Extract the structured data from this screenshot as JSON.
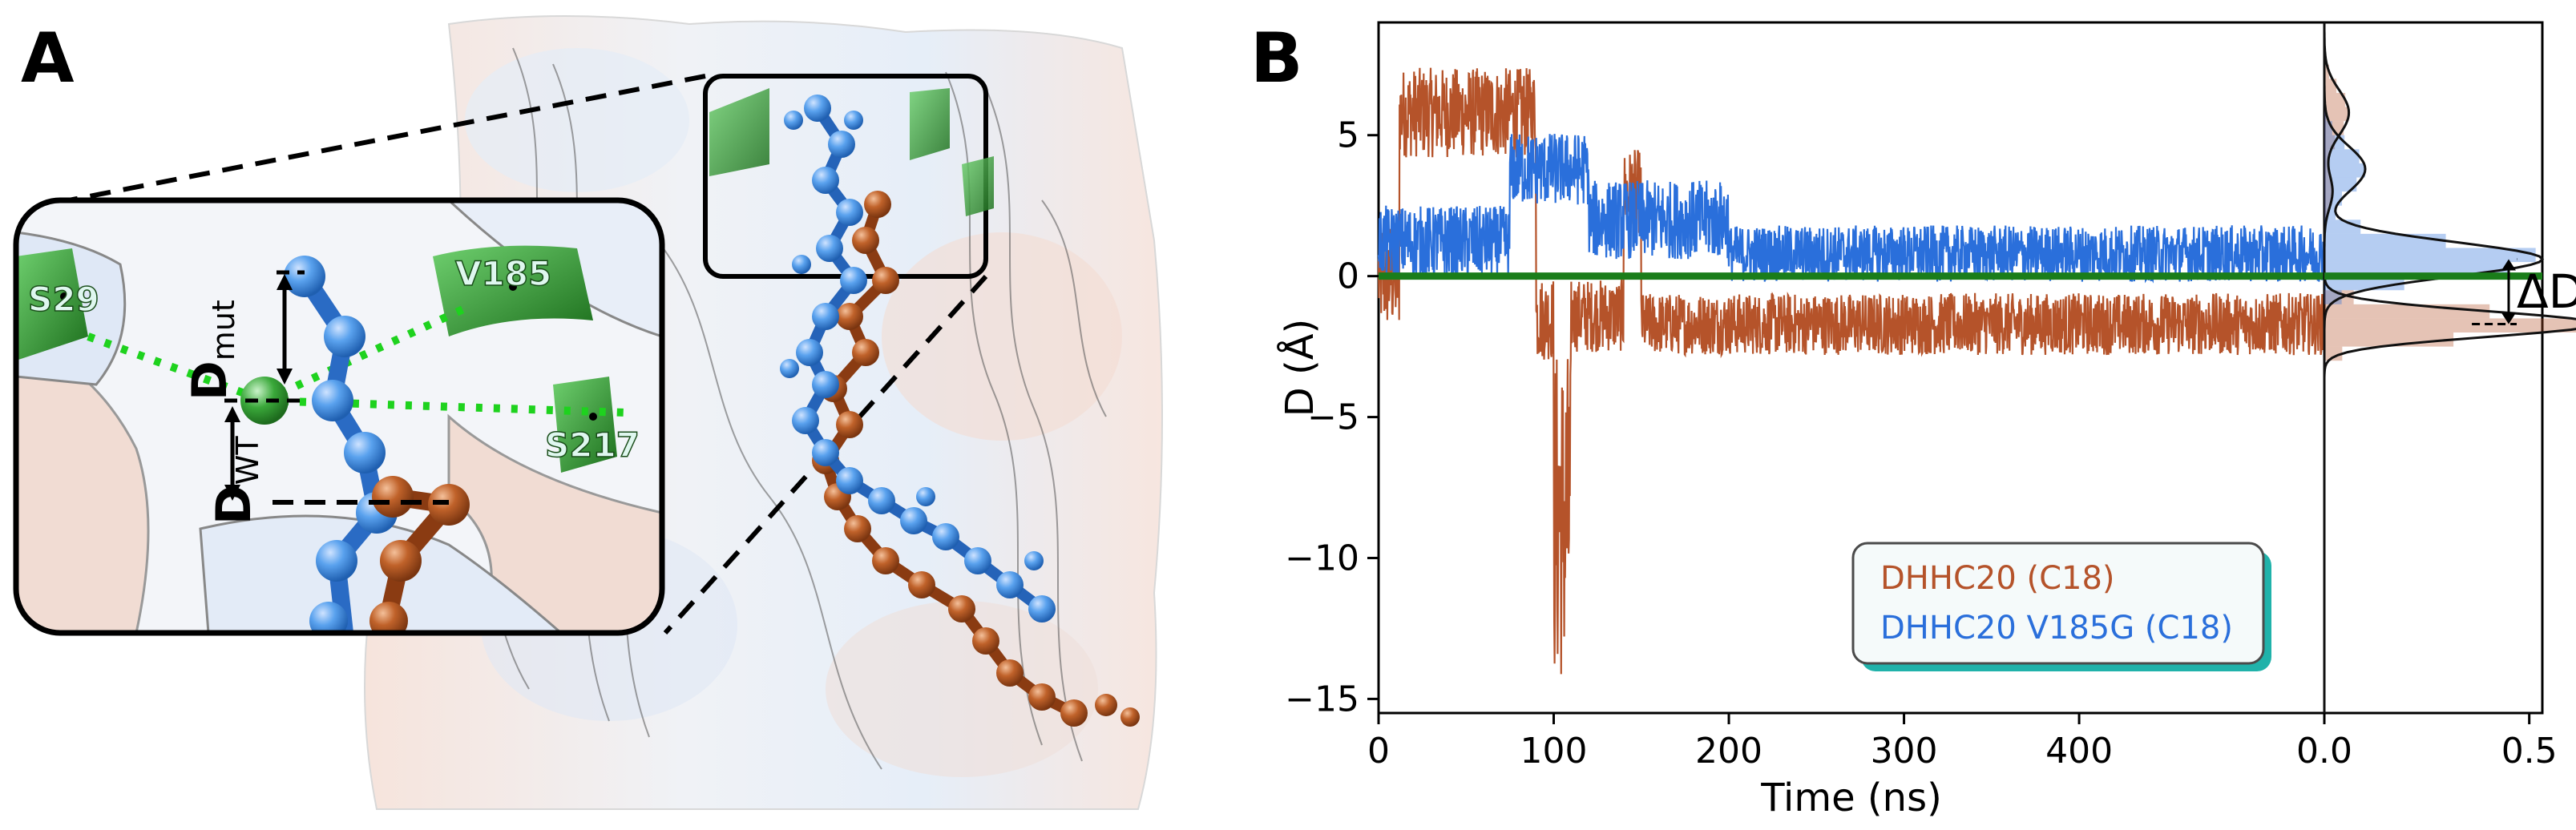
{
  "panel_a": {
    "letter": "A",
    "residues": [
      "S29",
      "V185",
      "S217"
    ],
    "d_mut": {
      "main": "D",
      "sub": "mut"
    },
    "d_wt": {
      "main": "D",
      "sub": "WT"
    }
  },
  "panel_b": {
    "letter": "B",
    "delta_label": "ΔD"
  },
  "colors": {
    "wt": "#b5532a",
    "mut": "#2a6fdb",
    "reference_line": "#1a7d1a",
    "residue_green": "#2e8b2e",
    "legend_border": "#20b2aa"
  },
  "chart_data": [
    {
      "type": "line",
      "xlabel": "Time (ns)",
      "ylabel": "D (Å)",
      "xlim": [
        0,
        540
      ],
      "ylim": [
        -15.5,
        9
      ],
      "xticks": [
        0,
        100,
        200,
        300,
        400
      ],
      "xtick_labels": [
        "0",
        "100",
        "200",
        "300",
        "400"
      ],
      "yticks": [
        5,
        0,
        -5,
        -10,
        -15
      ],
      "ytick_labels": [
        "5",
        "0",
        "−5",
        "−10",
        "−15"
      ],
      "reference_line_y": 0,
      "legend": {
        "placement": "lower-right",
        "entries": [
          "DHHC20 (C18)",
          "DHHC20 V185G (C18)"
        ]
      },
      "series": [
        {
          "name": "DHHC20 (C18)",
          "segments": [
            {
              "x": [
                0,
                12
              ],
              "center": 0.0,
              "spread": 2.0
            },
            {
              "x": [
                12,
                90
              ],
              "center": 5.8,
              "spread": 1.6
            },
            {
              "x": [
                90,
                100
              ],
              "center": -1.5,
              "spread": 1.5
            },
            {
              "x": [
                100,
                110
              ],
              "center": -8.5,
              "spread": 6.0
            },
            {
              "x": [
                110,
                140
              ],
              "center": -1.4,
              "spread": 1.3
            },
            {
              "x": [
                140,
                150
              ],
              "center": 3.0,
              "spread": 1.5
            },
            {
              "x": [
                150,
                540
              ],
              "center": -1.7,
              "spread": 1.1
            }
          ]
        },
        {
          "name": "DHHC20 V185G (C18)",
          "segments": [
            {
              "x": [
                0,
                75
              ],
              "center": 1.2,
              "spread": 1.3
            },
            {
              "x": [
                75,
                120
              ],
              "center": 3.8,
              "spread": 1.3
            },
            {
              "x": [
                120,
                200
              ],
              "center": 2.0,
              "spread": 1.4
            },
            {
              "x": [
                200,
                540
              ],
              "center": 0.8,
              "spread": 1.0
            }
          ]
        }
      ]
    },
    {
      "type": "area",
      "orientation": "horizontal",
      "xlim": [
        0,
        0.5
      ],
      "xticks": [
        0.0,
        0.5
      ],
      "xtick_labels": [
        "0.0",
        "0.5"
      ],
      "series": [
        {
          "name": "DHHC20 (C18)",
          "components": [
            {
              "mean": -1.7,
              "sd": 0.45,
              "weight": 0.75
            },
            {
              "mean": 5.8,
              "sd": 0.8,
              "weight": 0.12
            },
            {
              "mean": 3.0,
              "sd": 0.6,
              "weight": 0.03
            }
          ]
        },
        {
          "name": "DHHC20 V185G (C18)",
          "components": [
            {
              "mean": 0.6,
              "sd": 0.6,
              "weight": 0.8
            },
            {
              "mean": 3.8,
              "sd": 0.8,
              "weight": 0.2
            }
          ]
        }
      ]
    }
  ]
}
